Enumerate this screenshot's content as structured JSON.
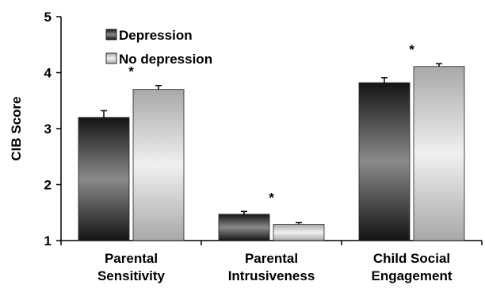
{
  "chart_data": {
    "type": "bar",
    "ylabel": "CIB Score",
    "xlabel": "",
    "ylim": [
      1,
      5
    ],
    "yticks": [
      1,
      2,
      3,
      4,
      5
    ],
    "categories": [
      [
        "Parental",
        "Sensitivity"
      ],
      [
        "Parental",
        "Intrusiveness"
      ],
      [
        "Child Social",
        "Engagement"
      ]
    ],
    "series": [
      {
        "name": "Depression",
        "values": [
          3.2,
          1.47,
          3.82
        ],
        "errors": [
          0.12,
          0.05,
          0.09
        ],
        "color": "#333333"
      },
      {
        "name": "No depression",
        "values": [
          3.7,
          1.29,
          4.11
        ],
        "errors": [
          0.07,
          0.03,
          0.05
        ],
        "color": "#c9c9c9"
      }
    ],
    "significance": [
      "*",
      "*",
      "*"
    ],
    "legend_position": "top-left",
    "grid": false
  }
}
